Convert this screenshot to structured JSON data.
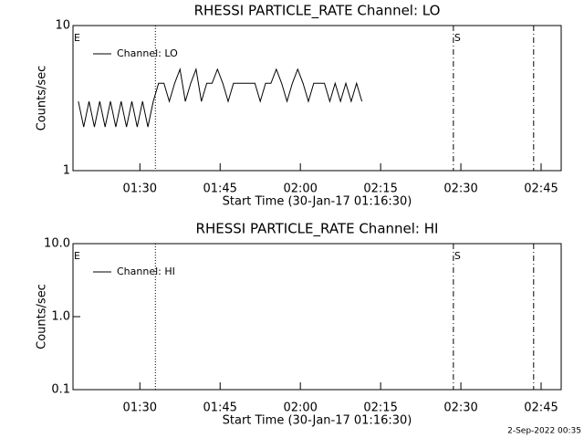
{
  "chart_data": [
    {
      "type": "line",
      "title": "RHESSI PARTICLE_RATE Channel: LO",
      "xlabel": "Start Time (30-Jan-17 01:16:30)",
      "ylabel": "Counts/sec",
      "log_y": true,
      "ylim": [
        1,
        10
      ],
      "yticks": [
        1,
        10
      ],
      "xlim": [
        77.5,
        168.75
      ],
      "xticks": [
        {
          "value": 90,
          "label": "01:30"
        },
        {
          "value": 105,
          "label": "01:45"
        },
        {
          "value": 120,
          "label": "02:00"
        },
        {
          "value": 135,
          "label": "02:15"
        },
        {
          "value": 150,
          "label": "02:30"
        },
        {
          "value": 165,
          "label": "02:45"
        }
      ],
      "annotations": [
        "E"
      ],
      "vlines": [
        {
          "x": 92.9,
          "style": "dotted"
        },
        {
          "x": 148.6,
          "style": "dash-dot",
          "label": "S"
        },
        {
          "x": 163.6,
          "style": "dash-dot"
        }
      ],
      "series": [
        {
          "name": "Channel: LO",
          "color": "#000000",
          "x": [
            78.5,
            79.5,
            80.5,
            81.5,
            82.5,
            83.5,
            84.5,
            85.5,
            86.5,
            87.5,
            88.5,
            89.5,
            90.5,
            91.5,
            92.5,
            93.5,
            94.5,
            95.5,
            96.5,
            97.5,
            98.5,
            99.5,
            100.5,
            101.5,
            102.5,
            103.5,
            104.5,
            105.5,
            106.5,
            107.5,
            108.5,
            109.5,
            110.5,
            111.5,
            112.5,
            113.5,
            114.5,
            115.5,
            116.5,
            117.5,
            118.5,
            119.5,
            120.5,
            121.5,
            122.5,
            123.5,
            124.5,
            125.5,
            126.5,
            127.5,
            128.5,
            129.5,
            130.5,
            131.5
          ],
          "values": [
            3,
            2,
            3,
            2,
            3,
            2,
            3,
            2,
            3,
            2,
            3,
            2,
            3,
            2,
            3,
            4,
            4,
            3,
            4,
            5,
            3,
            4,
            5,
            3,
            4,
            4,
            5,
            4,
            3,
            4,
            4,
            4,
            4,
            4,
            3,
            4,
            4,
            5,
            4,
            3,
            4,
            5,
            4,
            3,
            4,
            4,
            4,
            3,
            4,
            3,
            4,
            3,
            4,
            3
          ]
        }
      ]
    },
    {
      "type": "line",
      "title": "RHESSI PARTICLE_RATE Channel: HI",
      "xlabel": "Start Time (30-Jan-17 01:16:30)",
      "ylabel": "Counts/sec",
      "log_y": true,
      "ylim": [
        0.1,
        10
      ],
      "yticks": [
        0.1,
        {
          "value": 1,
          "label": "1.0"
        },
        {
          "value": 10,
          "label": "10.0"
        }
      ],
      "xlim": [
        77.5,
        168.75
      ],
      "xticks": [
        {
          "value": 90,
          "label": "01:30"
        },
        {
          "value": 105,
          "label": "01:45"
        },
        {
          "value": 120,
          "label": "02:00"
        },
        {
          "value": 135,
          "label": "02:15"
        },
        {
          "value": 150,
          "label": "02:30"
        },
        {
          "value": 165,
          "label": "02:45"
        }
      ],
      "annotations": [
        "E"
      ],
      "vlines": [
        {
          "x": 92.9,
          "style": "dotted"
        },
        {
          "x": 148.6,
          "style": "dash-dot",
          "label": "S"
        },
        {
          "x": 163.6,
          "style": "dash-dot"
        }
      ],
      "series": [
        {
          "name": "Channel: HI",
          "color": "#000000",
          "x": [],
          "values": []
        }
      ]
    }
  ],
  "footer": "2-Sep-2022 00:35"
}
